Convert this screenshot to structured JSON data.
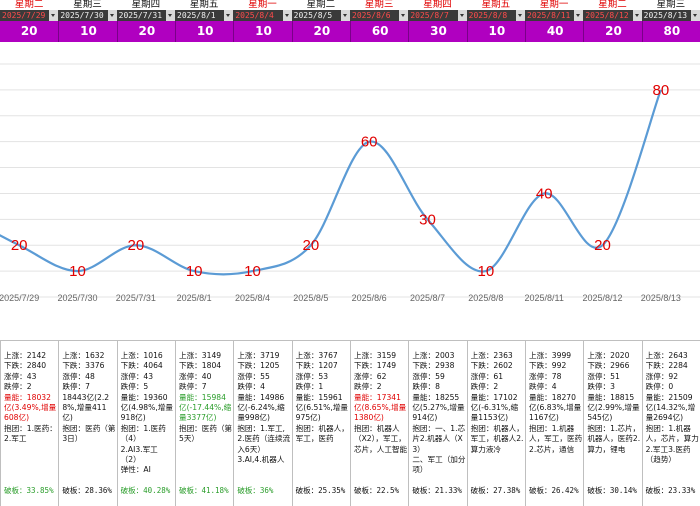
{
  "colors": {
    "red": "#e00000",
    "green": "#2a9d2a",
    "line": "#5b9bd5",
    "count_bg": "#b000c0"
  },
  "columns": [
    {
      "weekday": "星期二",
      "date": "2025/7/29",
      "count": "20",
      "red": true
    },
    {
      "weekday": "星期三",
      "date": "2025/7/30",
      "count": "10",
      "red": false
    },
    {
      "weekday": "星期四",
      "date": "2025/7/31",
      "count": "20",
      "red": false
    },
    {
      "weekday": "星期五",
      "date": "2025/8/1",
      "count": "10",
      "red": false
    },
    {
      "weekday": "星期一",
      "date": "2025/8/4",
      "count": "10",
      "red": true
    },
    {
      "weekday": "星期二",
      "date": "2025/8/5",
      "count": "20",
      "red": false
    },
    {
      "weekday": "星期三",
      "date": "2025/8/6",
      "count": "60",
      "red": true
    },
    {
      "weekday": "星期四",
      "date": "2025/8/7",
      "count": "30",
      "red": true
    },
    {
      "weekday": "星期五",
      "date": "2025/8/8",
      "count": "10",
      "red": true
    },
    {
      "weekday": "星期一",
      "date": "2025/8/11",
      "count": "40",
      "red": true
    },
    {
      "weekday": "星期二",
      "date": "2025/8/12",
      "count": "20",
      "red": true
    },
    {
      "weekday": "星期三",
      "date": "2025/8/13",
      "count": "80",
      "red": false
    }
  ],
  "chart_data": {
    "type": "line",
    "categories": [
      "2025/7/29",
      "2025/7/30",
      "2025/7/31",
      "2025/8/1",
      "2025/8/4",
      "2025/8/5",
      "2025/8/6",
      "2025/8/7",
      "2025/8/8",
      "2025/8/11",
      "2025/8/12",
      "2025/8/13"
    ],
    "values": [
      20,
      10,
      20,
      10,
      10,
      20,
      60,
      30,
      10,
      40,
      20,
      80
    ],
    "ylim": [
      0,
      90
    ],
    "grid": true
  },
  "table": [
    {
      "stats": "上涨：2142\n下跌：2840\n涨停：43\n跌停：2",
      "vol": "量能：18032亿(3.49%,增量608亿)",
      "vol_color": "red",
      "theme": "抱团：1.医药：2.军工",
      "break": "破板：33.85%",
      "break_color": "green"
    },
    {
      "stats": "上涨：1632\n下跌：3376\n涨停：48\n跌停：7",
      "vol": "18443亿(2.28%,增量411亿)",
      "vol_color": "",
      "theme": "抱团：医药（第3日）",
      "break": "破板：28.36%",
      "break_color": ""
    },
    {
      "stats": "上涨：1016\n下跌：4064\n涨停：43\n跌停：5\n量能：19360亿(4.98%,增量918亿)",
      "vol": "",
      "vol_color": "",
      "theme": "抱团：1.医药（4）\n2.AI3.军工（2）\n弹性：AI",
      "break": "破板：40.28%",
      "break_color": "green"
    },
    {
      "stats": "上涨：3149\n下跌：1804\n涨停：40\n跌停：7",
      "vol": "量能：15984亿(-17.44%,缩量3377亿)",
      "vol_color": "green",
      "theme": "抱团：医药（第5天）",
      "break": "破板：41.18%",
      "break_color": "green"
    },
    {
      "stats": "上涨：3719\n下跌：1205\n涨停：55\n跌停：4\n量能：14986亿(-6.24%,缩量998亿)",
      "vol": "",
      "vol_color": "",
      "theme": "抱团：1.军工,2.医药（连续流入6天）\n3.AI,4.机器人",
      "break": "破板：36%",
      "break_color": "green"
    },
    {
      "stats": "上涨：3767\n下跌：1207\n涨停：53\n跌停：1\n量能：15961亿(6.51%,增量975亿)",
      "vol": "",
      "vol_color": "",
      "theme": "抱团：机器人，军工，医药",
      "break": "破板：25.35%",
      "break_color": ""
    },
    {
      "stats": "上涨：3159\n下跌：1749\n涨停：62\n跌停：2",
      "vol": "量能：17341亿(8.65%,增量1380亿)",
      "vol_color": "red",
      "theme": "抱团：机器人（X2），军工，芯片，人工智能",
      "break": "破板：22.5%",
      "break_color": ""
    },
    {
      "stats": "上涨：2003\n下跌：2938\n涨停：59\n跌停：8\n量能：18255亿(5.27%,增量914亿)",
      "vol": "",
      "vol_color": "",
      "theme": "抱团：一、1.芯片2.机器人（X3）\n二、军工（加分项）",
      "break": "破板：21.33%",
      "break_color": ""
    },
    {
      "stats": "上涨：2363\n下跌：2602\n涨停：61\n跌停：2\n量能：17102亿(-6.31%,缩量1153亿)",
      "vol": "",
      "vol_color": "",
      "theme": "抱团：机器人，军工，机器人2.算力液冷",
      "break": "破板：27.38%",
      "break_color": ""
    },
    {
      "stats": "上涨：3999\n下跌：992\n涨停：78\n跌停：4\n量能：18270亿(6.83%,增量1167亿)",
      "vol": "",
      "vol_color": "",
      "theme": "抱团：1.机器人，军工，医药2.芯片，通信",
      "break": "破板：26.42%",
      "break_color": ""
    },
    {
      "stats": "上涨：2020\n下跌：2966\n涨停：51\n跌停：3\n量能：18815亿(2.99%,增量545亿)",
      "vol": "",
      "vol_color": "",
      "theme": "抱团：1.芯片，机器人，医药2.算力，锂电",
      "break": "破板：30.14%",
      "break_color": ""
    },
    {
      "stats": "上涨：2643\n下跌：2284\n涨停：92\n跌停：0\n量能：21509亿(14.32%,增量2694亿)",
      "vol": "",
      "vol_color": "",
      "theme": "抱团：1.机器人，芯片，算力2.军工3.医药（趋势）",
      "break": "破板：23.33%",
      "break_color": ""
    }
  ]
}
